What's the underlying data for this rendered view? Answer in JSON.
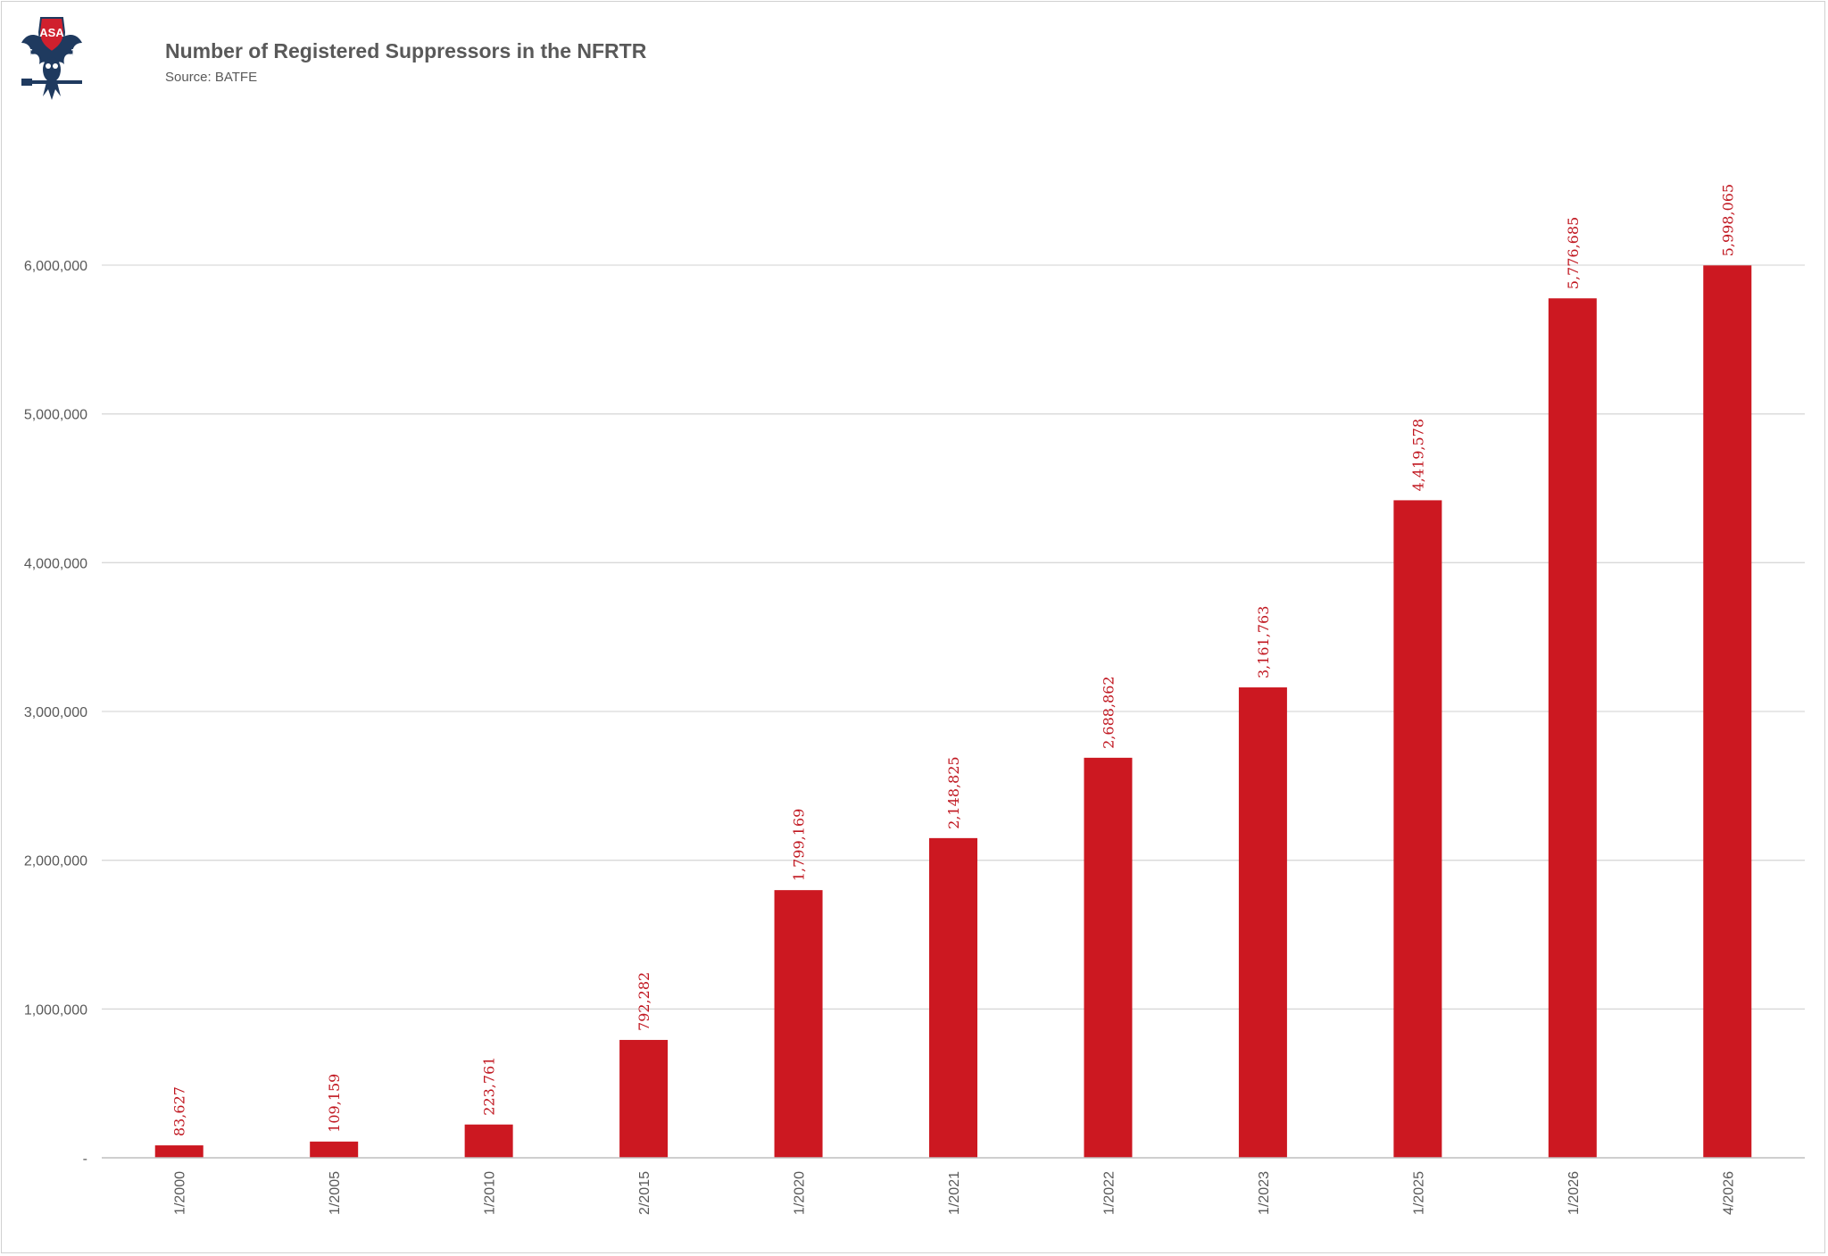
{
  "logo": {
    "text": "ASA",
    "icon": "eagle-logo-icon",
    "colors": {
      "navy": "#1f3a5f",
      "red": "#d0202e"
    }
  },
  "header": {
    "title": "Number of Registered Suppressors in the NFRTR",
    "subtitle": "Source: BATFE"
  },
  "chart_data": {
    "type": "bar",
    "title": "Number of Registered Suppressors in the NFRTR",
    "subtitle": "Source: BATFE",
    "xlabel": "",
    "ylabel": "",
    "categories": [
      "1/2000",
      "1/2005",
      "1/2010",
      "2/2015",
      "1/2020",
      "1/2021",
      "1/2022",
      "1/2023",
      "1/2025",
      "1/2026",
      "4/2026"
    ],
    "values": [
      83627,
      109159,
      223761,
      792282,
      1799169,
      2148825,
      2688862,
      3161763,
      4419578,
      5776685,
      5998065
    ],
    "data_labels": [
      "83,627",
      "109,159",
      "223,761",
      "792,282",
      "1,799,169",
      "2,148,825",
      "2,688,862",
      "3,161,763",
      "4,419,578",
      "5,776,685",
      "5,998,065"
    ],
    "ylim": [
      0,
      6000000
    ],
    "yticks": [
      0,
      1000000,
      2000000,
      3000000,
      4000000,
      5000000,
      6000000
    ],
    "ytick_labels": [
      "-",
      "1,000,000",
      "2,000,000",
      "3,000,000",
      "4,000,000",
      "5,000,000",
      "6,000,000"
    ],
    "grid": true,
    "legend": "none",
    "bar_color": "#cc1821"
  }
}
